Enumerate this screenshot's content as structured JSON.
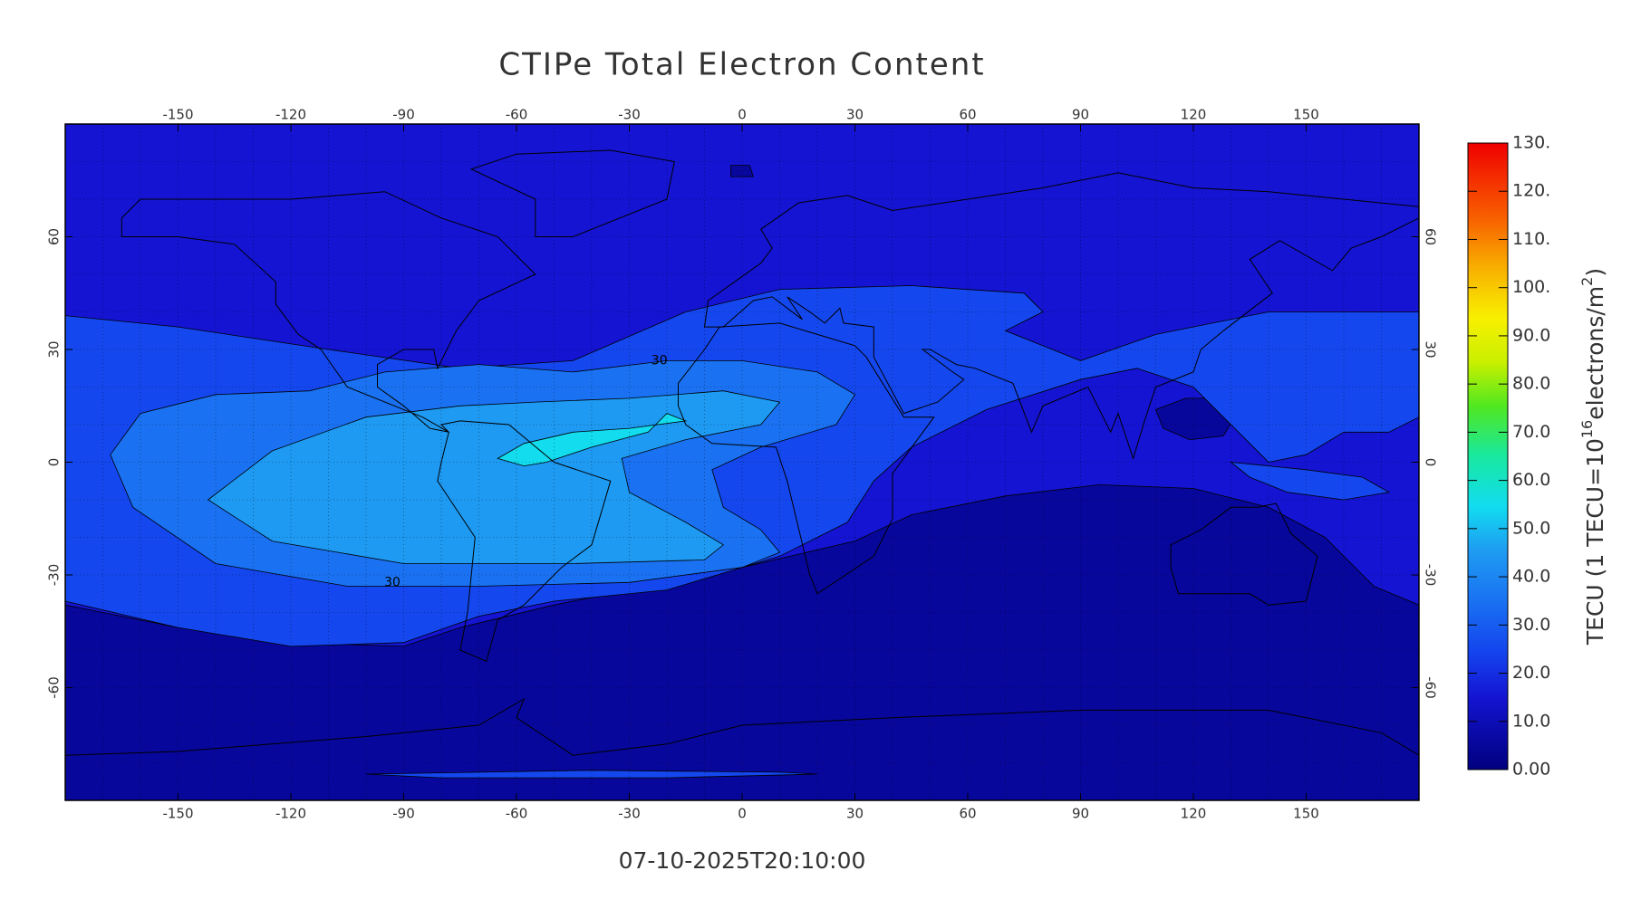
{
  "chart_data": {
    "type": "contour",
    "title": "CTIPe Total Electron Content",
    "subtitle": "07-10-2025T20:10:00",
    "xlim": [
      -180,
      180
    ],
    "ylim": [
      -90,
      90
    ],
    "xticks": [
      -150,
      -120,
      -90,
      -60,
      -30,
      0,
      30,
      60,
      90,
      120,
      150
    ],
    "yticks": [
      -60,
      -30,
      0,
      30,
      60
    ],
    "grid": true,
    "contour_labels": [
      30,
      30
    ],
    "colorbar": {
      "label": [
        "TECU (1 TECU=10",
        "16",
        "electrons/m",
        "2",
        ")"
      ],
      "lim": [
        0,
        130
      ],
      "ticks": [
        {
          "value": 0,
          "label": "0.00"
        },
        {
          "value": 10,
          "label": "10.0"
        },
        {
          "value": 20,
          "label": "20.0"
        },
        {
          "value": 30,
          "label": "30.0"
        },
        {
          "value": 40,
          "label": "40.0"
        },
        {
          "value": 50,
          "label": "50.0"
        },
        {
          "value": 60,
          "label": "60.0"
        },
        {
          "value": 70,
          "label": "70.0"
        },
        {
          "value": 80,
          "label": "80.0"
        },
        {
          "value": 90,
          "label": "90.0"
        },
        {
          "value": 100,
          "label": "100."
        },
        {
          "value": 110,
          "label": "110."
        },
        {
          "value": 120,
          "label": "120."
        },
        {
          "value": 130,
          "label": "130."
        }
      ]
    }
  }
}
